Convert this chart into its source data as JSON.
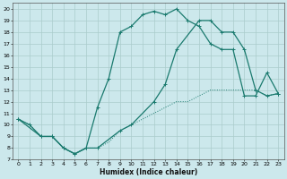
{
  "xlabel": "Humidex (Indice chaleur)",
  "bg_color": "#cce8ec",
  "line_color": "#1a7a6e",
  "grid_color": "#aacccc",
  "xlim": [
    -0.5,
    23.5
  ],
  "ylim": [
    7,
    20.5
  ],
  "xticks": [
    0,
    1,
    2,
    3,
    4,
    5,
    6,
    7,
    8,
    9,
    10,
    11,
    12,
    13,
    14,
    15,
    16,
    17,
    18,
    19,
    20,
    21,
    22,
    23
  ],
  "yticks": [
    7,
    8,
    9,
    10,
    11,
    12,
    13,
    14,
    15,
    16,
    17,
    18,
    19,
    20
  ],
  "line_peak_x": [
    0,
    1,
    2,
    3,
    4,
    5,
    6,
    7,
    8,
    9,
    10,
    11,
    12,
    13,
    14,
    15,
    16,
    17,
    18,
    19,
    20,
    21,
    22,
    23
  ],
  "line_peak_y": [
    10.5,
    10,
    9,
    9,
    8,
    7.5,
    8,
    11.5,
    14,
    18,
    18.5,
    19.5,
    19.8,
    19.5,
    20,
    19,
    18.5,
    17,
    16.5,
    16.5,
    12.5,
    12.5,
    14.5,
    12.7
  ],
  "line_low_x": [
    0,
    1,
    2,
    3,
    4,
    5,
    6,
    7,
    8,
    9,
    10,
    11,
    12,
    13,
    14,
    15,
    16,
    17,
    18,
    19,
    20,
    21,
    22,
    23
  ],
  "line_low_y": [
    10.5,
    10,
    9,
    9,
    8,
    7.5,
    8,
    8,
    8.5,
    9.5,
    10,
    10.5,
    11,
    11.5,
    12,
    12,
    12.5,
    13,
    13,
    13,
    13,
    13,
    12.5,
    12.7
  ],
  "line_trend_x": [
    0,
    2,
    3,
    4,
    5,
    6,
    7,
    9,
    10,
    12,
    13,
    14,
    16,
    17,
    18,
    19,
    20,
    21,
    22,
    23
  ],
  "line_trend_y": [
    10.5,
    9,
    9,
    8,
    7.5,
    8,
    8,
    9.5,
    10,
    12,
    13.5,
    16.5,
    19,
    19,
    18,
    18,
    16.5,
    13,
    12.5,
    12.7
  ]
}
